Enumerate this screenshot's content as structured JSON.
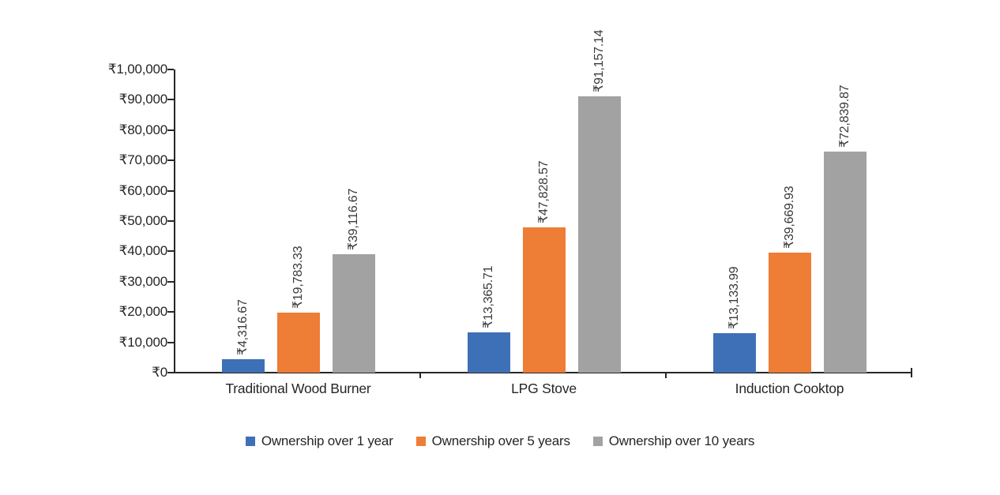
{
  "chart_data": {
    "type": "bar",
    "categories": [
      "Traditional Wood Burner",
      "LPG Stove",
      "Induction Cooktop"
    ],
    "series": [
      {
        "name": "Ownership over 1 year",
        "color": "#3E70B7",
        "values": [
          4316.67,
          13365.71,
          13133.99
        ],
        "data_labels": [
          "₹4,316.67",
          "₹13,365.71",
          "₹13,133.99"
        ]
      },
      {
        "name": "Ownership over 5 years",
        "color": "#EE7D36",
        "values": [
          19783.33,
          47828.57,
          39669.93
        ],
        "data_labels": [
          "₹19,783.33",
          "₹47,828.57",
          "₹39,669.93"
        ]
      },
      {
        "name": "Ownership over 10 years",
        "color": "#A2A2A2",
        "values": [
          39116.67,
          91157.14,
          72839.87
        ],
        "data_labels": [
          "₹39,116.67",
          "₹91,157.14",
          "₹72,839.87"
        ]
      }
    ],
    "title": "",
    "xlabel": "",
    "ylabel": "",
    "y_axis": {
      "min": 0,
      "max": 100000,
      "step": 10000,
      "tick_labels": [
        "₹0",
        "₹10,000",
        "₹20,000",
        "₹30,000",
        "₹40,000",
        "₹50,000",
        "₹60,000",
        "₹70,000",
        "₹80,000",
        "₹90,000",
        "₹1,00,000"
      ]
    },
    "grid": false,
    "legend_position": "bottom",
    "data_label_orientation": "vertical",
    "axis_color": "#262626",
    "text_color": "#262626"
  }
}
